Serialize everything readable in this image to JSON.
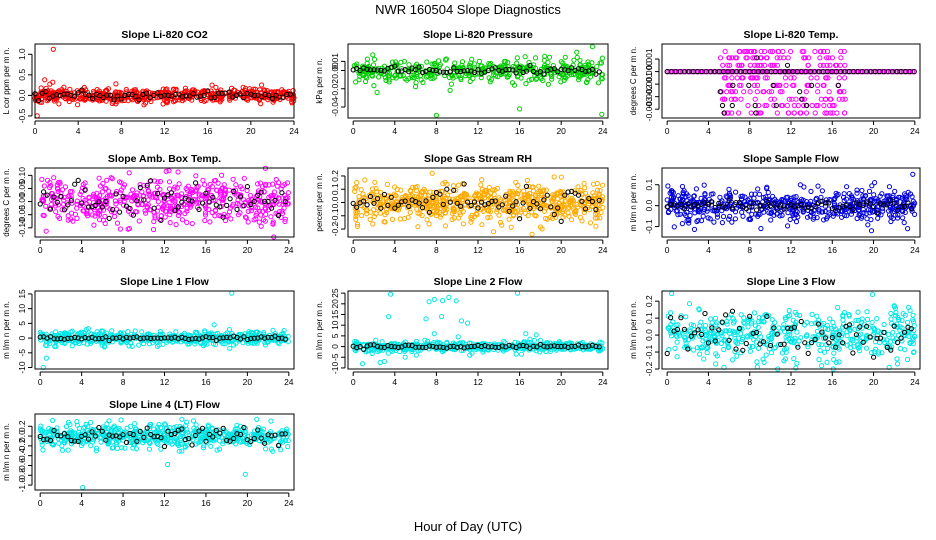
{
  "suptitle": "NWR  160504  Slope Diagnostics",
  "xlabel": "Hour of Day (UTC)",
  "chart_data": [
    {
      "type": "scatter",
      "title": "Slope Li-820 CO2",
      "ylabel": "L cor ppm per m n.",
      "color": "#ff0000",
      "xlim": [
        0,
        24
      ],
      "ylim": [
        -0.55,
        1.25
      ],
      "yticks": [
        -0.5,
        0.0,
        0.5,
        1.0
      ],
      "ytick_labels": [
        "-0.5",
        "0.0",
        "0.5",
        "1.0"
      ],
      "xticks": [
        0,
        4,
        8,
        12,
        16,
        20,
        24
      ],
      "center": 0.0,
      "spread": 0.09,
      "black_spread": 0.05,
      "n": 520,
      "seed": 11,
      "outliers": [
        [
          1.7,
          1.12
        ],
        [
          0.2,
          -0.5
        ],
        [
          0.9,
          0.38
        ],
        [
          7.5,
          0.28
        ],
        [
          16.4,
          0.25
        ]
      ]
    },
    {
      "type": "scatter",
      "title": "Slope Li-820 Pressure",
      "ylabel": "kPa per m n.",
      "color": "#00cc00",
      "xlim": [
        -0.5,
        24.5
      ],
      "ylim": [
        -0.052,
        0.029
      ],
      "yticks": [
        -0.04,
        -0.02,
        0.0,
        0.01
      ],
      "ytick_labels": [
        "-0.04",
        "-0.02",
        "0.00",
        "0.01"
      ],
      "xticks": [
        0,
        4,
        8,
        12,
        16,
        20,
        24
      ],
      "center": 0.0,
      "spread": 0.006,
      "black_spread": 0.002,
      "n": 420,
      "seed": 23,
      "outliers": [
        [
          8.0,
          -0.049
        ],
        [
          16.0,
          -0.042
        ],
        [
          23.9,
          -0.048
        ],
        [
          2.3,
          -0.024
        ],
        [
          21.5,
          0.02
        ],
        [
          23.0,
          0.026
        ]
      ]
    },
    {
      "type": "scatter",
      "title": "Slope Li-820 Temp.",
      "ylabel": "degrees C per m n.",
      "color": "#ff00ff",
      "xlim": [
        -0.5,
        24.5
      ],
      "ylim": [
        -0.0037,
        0.0022
      ],
      "yticks": [
        -0.003,
        -0.002,
        -0.001,
        0.0,
        0.001
      ],
      "ytick_labels": [
        "-0.003",
        "-0.002",
        "-0.001",
        "0.000",
        "0.001"
      ],
      "xticks": [
        0,
        4,
        8,
        12,
        16,
        20,
        24
      ],
      "center": 0.0,
      "spread": 0.0,
      "black_spread": 0.0,
      "n": 250,
      "seed": 37,
      "quantized": [
        -0.0033,
        -0.0027,
        -0.0022,
        -0.0016,
        -0.0011,
        -0.0005,
        0.0,
        0.0005,
        0.0011,
        0.0016
      ],
      "active": [
        5.0,
        17.5
      ],
      "outliers": []
    },
    {
      "type": "scatter",
      "title": "Slope Amb. Box Temp.",
      "ylabel": "degrees C per m n.",
      "color": "#ff00ff",
      "xlim": [
        -0.5,
        24.5
      ],
      "ylim": [
        -0.135,
        0.128
      ],
      "yticks": [
        -0.1,
        -0.05,
        0.0,
        0.05,
        0.1
      ],
      "ytick_labels": [
        "-0.10",
        "-0.05",
        "0.00",
        "0.05",
        "0.10"
      ],
      "xticks": [
        0,
        4,
        8,
        12,
        16,
        20,
        24
      ],
      "center": 0.0,
      "spread": 0.045,
      "black_spread": 0.035,
      "n": 520,
      "seed": 41,
      "outliers": []
    },
    {
      "type": "scatter",
      "title": "Slope Gas Stream RH",
      "ylabel": "percent per m n.",
      "color": "#ffaa00",
      "xlim": [
        -0.5,
        24.5
      ],
      "ylim": [
        -0.26,
        0.26
      ],
      "yticks": [
        -0.2,
        -0.1,
        0.0,
        0.1,
        0.2
      ],
      "ytick_labels": [
        "-0.2",
        "-0.1",
        "0.0",
        "0.1",
        "0.2"
      ],
      "xticks": [
        0,
        4,
        8,
        12,
        16,
        20,
        24
      ],
      "center": 0.0,
      "spread": 0.07,
      "black_spread": 0.05,
      "n": 640,
      "seed": 53,
      "outliers": [
        [
          0.4,
          -0.18
        ],
        [
          13.5,
          -0.22
        ],
        [
          17.2,
          -0.24
        ],
        [
          7.6,
          0.22
        ]
      ]
    },
    {
      "type": "scatter",
      "title": "Slope Sample Flow",
      "ylabel": "m l/m n per m n.",
      "color": "#0000dd",
      "xlim": [
        -0.5,
        24.5
      ],
      "ylim": [
        -0.15,
        0.18
      ],
      "yticks": [
        -0.1,
        0.0,
        0.1
      ],
      "ytick_labels": [
        "-0.1",
        "0.0",
        "0.1"
      ],
      "xticks": [
        0,
        4,
        8,
        12,
        16,
        20,
        24
      ],
      "center": 0.0,
      "spread": 0.035,
      "black_spread": 0.012,
      "n": 540,
      "seed": 67,
      "outliers": [
        [
          19.8,
          -0.12
        ],
        [
          23.3,
          -0.11
        ],
        [
          20.1,
          0.11
        ],
        [
          23.8,
          0.15
        ],
        [
          3.0,
          -0.07
        ]
      ]
    },
    {
      "type": "scatter",
      "title": "Slope Line 1 Flow",
      "ylabel": "m l/m n per m n.",
      "color": "#00e6e6",
      "xlim": [
        -0.5,
        24.5
      ],
      "ylim": [
        -10.5,
        16
      ],
      "yticks": [
        -10,
        -5,
        0,
        5,
        10,
        15
      ],
      "ytick_labels": [
        "-10",
        "-5",
        "0",
        "5",
        "10",
        "15"
      ],
      "xticks": [
        0,
        4,
        8,
        12,
        16,
        20,
        24
      ],
      "center": 0.0,
      "spread": 1.1,
      "black_spread": 0.3,
      "n": 520,
      "seed": 71,
      "outliers": [
        [
          18.5,
          15.3
        ],
        [
          0.3,
          -10.0
        ],
        [
          0.6,
          -6.8
        ],
        [
          16.8,
          4.5
        ]
      ]
    },
    {
      "type": "scatter",
      "title": "Slope Line 2 Flow",
      "ylabel": "m l/m n per m n.",
      "color": "#00e6e6",
      "xlim": [
        -0.5,
        24.5
      ],
      "ylim": [
        -10.5,
        26
      ],
      "yticks": [
        -10,
        -5,
        0,
        5,
        10,
        15,
        20,
        25
      ],
      "ytick_labels": [
        "-10",
        "-5",
        "0",
        "5",
        "10",
        "15",
        "20",
        "25"
      ],
      "xticks": [
        0,
        4,
        8,
        12,
        16,
        20,
        24
      ],
      "center": 0.0,
      "spread": 1.2,
      "black_spread": 0.4,
      "n": 440,
      "seed": 83,
      "outliers": [
        [
          3.6,
          24.5
        ],
        [
          15.8,
          25
        ],
        [
          7.3,
          21
        ],
        [
          7.8,
          22
        ],
        [
          8.6,
          21.5
        ],
        [
          9.2,
          23
        ],
        [
          9.9,
          21.4
        ],
        [
          3.4,
          14
        ],
        [
          7.0,
          13
        ],
        [
          8.5,
          14
        ],
        [
          10.4,
          12
        ],
        [
          11.0,
          11
        ],
        [
          7.8,
          6
        ],
        [
          10.1,
          4.5
        ],
        [
          3.0,
          -7
        ],
        [
          0.9,
          -8
        ],
        [
          2.6,
          -7.5
        ],
        [
          5.0,
          -5
        ],
        [
          11.2,
          -4
        ],
        [
          16.6,
          6
        ],
        [
          17.6,
          5.5
        ]
      ]
    },
    {
      "type": "scatter",
      "title": "Slope Line 3 Flow",
      "ylabel": "m l/m n per m n.",
      "color": "#00e6e6",
      "xlim": [
        -0.5,
        24.5
      ],
      "ylim": [
        -0.2,
        0.26
      ],
      "yticks": [
        -0.2,
        -0.1,
        0.0,
        0.1,
        0.2
      ],
      "ytick_labels": [
        "-0.2",
        "-0.1",
        "0.0",
        "0.1",
        "0.2"
      ],
      "xticks": [
        0,
        4,
        8,
        12,
        16,
        20,
        24
      ],
      "center": 0.0,
      "spread": 0.08,
      "black_spread": 0.07,
      "n": 480,
      "seed": 97,
      "outliers": [
        [
          19.9,
          0.24
        ],
        [
          5.5,
          -0.19
        ]
      ]
    },
    {
      "type": "scatter",
      "title": "Slope Line 4 (LT) Flow",
      "ylabel": "m l/m n per m n.",
      "color": "#00e6e6",
      "xlim": [
        -0.5,
        24.5
      ],
      "ylim": [
        -1.1,
        0.45
      ],
      "yticks": [
        -1.0,
        -0.8,
        -0.6,
        -0.4,
        -0.2,
        0.0,
        0.2
      ],
      "ytick_labels": [
        "-1.0",
        "-0.8",
        "-0.6",
        "-0.4",
        "-0.2",
        "0.0",
        "0.2"
      ],
      "xticks": [
        0,
        4,
        8,
        12,
        16,
        20,
        24
      ],
      "center": 0.0,
      "spread": 0.12,
      "black_spread": 0.1,
      "n": 560,
      "seed": 101,
      "outliers": [
        [
          4.1,
          -1.05
        ],
        [
          19.8,
          -0.78
        ],
        [
          12.3,
          -0.58
        ],
        [
          1.2,
          0.32
        ],
        [
          14.8,
          0.31
        ]
      ]
    }
  ]
}
